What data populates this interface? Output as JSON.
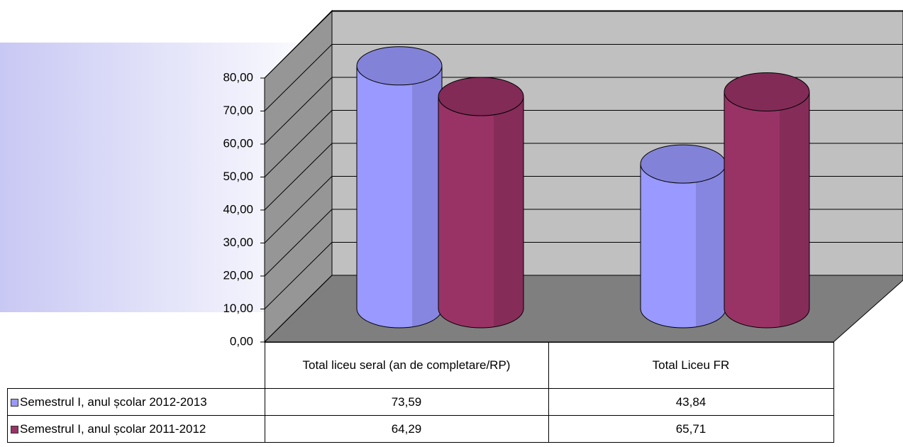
{
  "chart_data": {
    "type": "bar3d",
    "categories": [
      "Total liceu seral (an de completare/RP)",
      "Total Liceu FR"
    ],
    "series": [
      {
        "name": "Semestrul I, anul școlar 2012-2013",
        "color": "#9999ff",
        "values": [
          73.59,
          43.84
        ],
        "value_labels": [
          "73,59",
          "43,84"
        ]
      },
      {
        "name": "Semestrul I, anul școlar 2011-2012",
        "color": "#993366",
        "values": [
          64.29,
          65.71
        ],
        "value_labels": [
          "64,29",
          "65,71"
        ]
      }
    ],
    "ylim": [
      0,
      80
    ],
    "yticks": [
      {
        "value": 0,
        "label": "0,00"
      },
      {
        "value": 10,
        "label": "10,00"
      },
      {
        "value": 20,
        "label": "20,00"
      },
      {
        "value": 30,
        "label": "30,00"
      },
      {
        "value": 40,
        "label": "40,00"
      },
      {
        "value": 50,
        "label": "50,00"
      },
      {
        "value": 60,
        "label": "60,00"
      },
      {
        "value": 70,
        "label": "70,00"
      },
      {
        "value": 80,
        "label": "80,00"
      }
    ],
    "grid": true
  }
}
